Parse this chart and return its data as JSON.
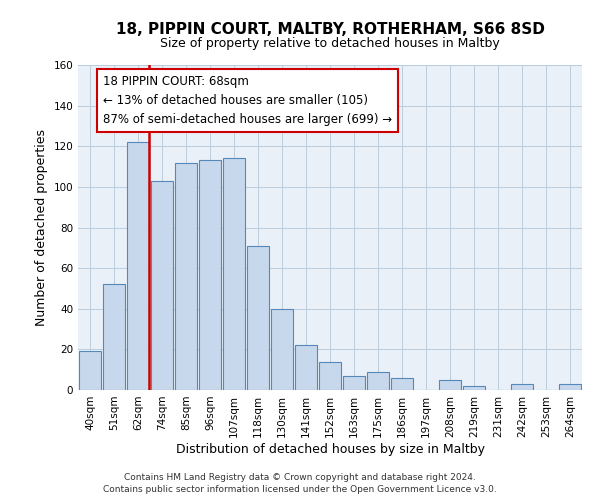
{
  "title": "18, PIPPIN COURT, MALTBY, ROTHERHAM, S66 8SD",
  "subtitle": "Size of property relative to detached houses in Maltby",
  "xlabel": "Distribution of detached houses by size in Maltby",
  "ylabel": "Number of detached properties",
  "footer_line1": "Contains HM Land Registry data © Crown copyright and database right 2024.",
  "footer_line2": "Contains public sector information licensed under the Open Government Licence v3.0.",
  "bar_labels": [
    "40sqm",
    "51sqm",
    "62sqm",
    "74sqm",
    "85sqm",
    "96sqm",
    "107sqm",
    "118sqm",
    "130sqm",
    "141sqm",
    "152sqm",
    "163sqm",
    "175sqm",
    "186sqm",
    "197sqm",
    "208sqm",
    "219sqm",
    "231sqm",
    "242sqm",
    "253sqm",
    "264sqm"
  ],
  "bar_values": [
    19,
    52,
    122,
    103,
    112,
    113,
    114,
    71,
    40,
    22,
    14,
    7,
    9,
    6,
    0,
    5,
    2,
    0,
    3,
    0,
    3
  ],
  "bar_color": "#c8d8ec",
  "bar_edge_color": "#5588bb",
  "highlight_bar_idx": 2,
  "highlight_color": "#cc0000",
  "ylim": [
    0,
    160
  ],
  "yticks": [
    0,
    20,
    40,
    60,
    80,
    100,
    120,
    140,
    160
  ],
  "annotation_title": "18 PIPPIN COURT: 68sqm",
  "annotation_line1": "← 13% of detached houses are smaller (105)",
  "annotation_line2": "87% of semi-detached houses are larger (699) →",
  "annotation_box_color": "#ffffff",
  "annotation_box_edge": "#cc0000",
  "title_fontsize": 11,
  "subtitle_fontsize": 9,
  "axis_label_fontsize": 9,
  "tick_fontsize": 7.5,
  "annotation_fontsize": 8.5,
  "footer_fontsize": 6.5,
  "background_color": "#ffffff",
  "grid_color": "#bbccdd",
  "bar_width": 0.9
}
